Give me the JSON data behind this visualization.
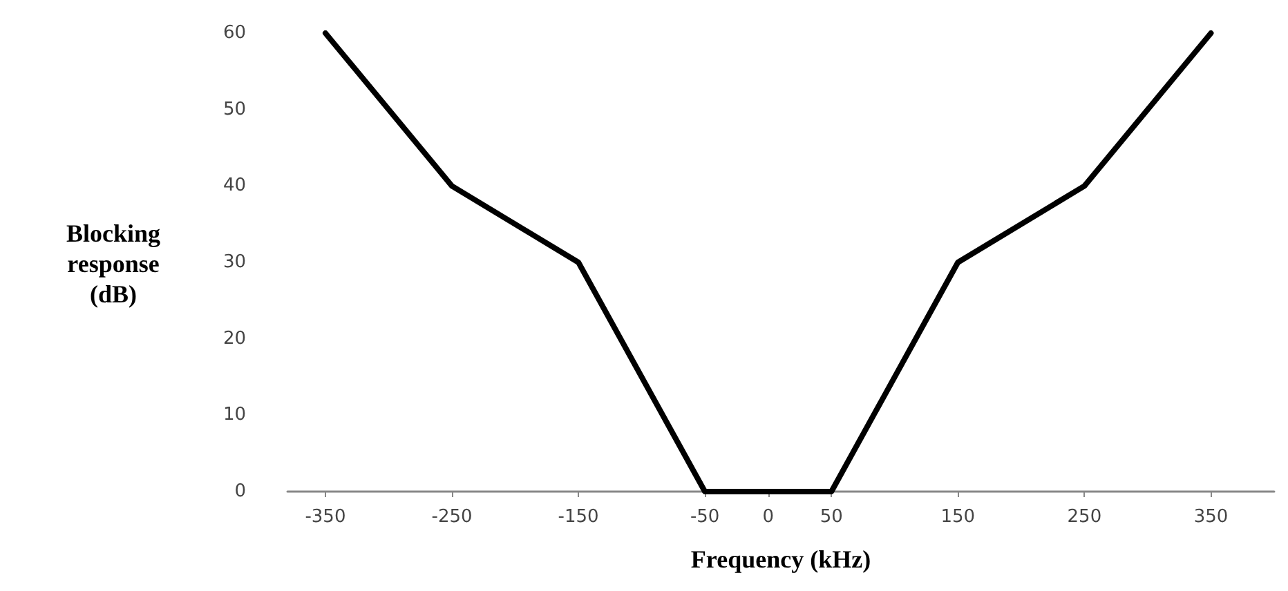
{
  "chart_data": {
    "type": "line",
    "xlabel": "Frequency (kHz)",
    "ylabel": "Blocking response (dB)",
    "x": [
      -350,
      -250,
      -150,
      -50,
      50,
      150,
      250,
      350
    ],
    "series": [
      {
        "color": "#000000",
        "values": [
          60,
          40,
          30,
          0,
          0,
          30,
          40,
          60
        ]
      }
    ],
    "xlim": [
      -380,
      400
    ],
    "xticks": [
      -350,
      -250,
      -150,
      -50,
      0,
      50,
      150,
      250,
      350
    ],
    "ylim": [
      0,
      60
    ],
    "yticks": [
      0,
      10,
      20,
      30,
      40,
      50,
      60
    ],
    "grid": false,
    "marker": "none",
    "line_style": "solid"
  }
}
